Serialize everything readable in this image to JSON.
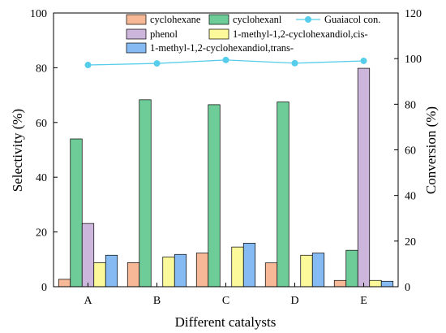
{
  "chart_data": {
    "type": "bar",
    "title": "",
    "xlabel": "Different catalysts",
    "ylabel": "Selectivity (%)",
    "y2label": "Conversion (%)",
    "categories": [
      "A",
      "B",
      "C",
      "D",
      "E"
    ],
    "ylim": [
      0,
      100
    ],
    "y2lim": [
      0,
      120
    ],
    "yticks": [
      0,
      20,
      40,
      60,
      80,
      100
    ],
    "y2ticks": [
      0,
      20,
      40,
      60,
      80,
      100,
      120
    ],
    "grid": false,
    "legend_position": "top",
    "series": [
      {
        "name": "cyclohexane",
        "type": "bar",
        "axis": "left",
        "color": "#f6b896",
        "values": [
          2.7,
          8.8,
          12.3,
          8.7,
          2.3
        ]
      },
      {
        "name": "cyclohexanl",
        "type": "bar",
        "axis": "left",
        "color": "#6dcc98",
        "values": [
          54,
          68.3,
          66.5,
          67.5,
          13.3
        ]
      },
      {
        "name": "phenol",
        "type": "bar",
        "axis": "left",
        "color": "#cdb6dc",
        "values": [
          23.1,
          0,
          0,
          0,
          79.8
        ]
      },
      {
        "name": "1-methyl-1,2-cyclohexandiol,cis-",
        "type": "bar",
        "axis": "left",
        "color": "#fbf99a",
        "values": [
          8.8,
          10.9,
          14.5,
          11.5,
          2.3
        ]
      },
      {
        "name": "1-methyl-1,2-cyclohexandiol,trans-",
        "type": "bar",
        "axis": "left",
        "color": "#86baf2",
        "values": [
          11.5,
          11.8,
          15.9,
          12.3,
          2
        ]
      },
      {
        "name": "Guaiacol con.",
        "type": "line",
        "axis": "right",
        "color": "#56cdea",
        "values": [
          97.2,
          97.9,
          99.4,
          98,
          99
        ]
      }
    ]
  }
}
